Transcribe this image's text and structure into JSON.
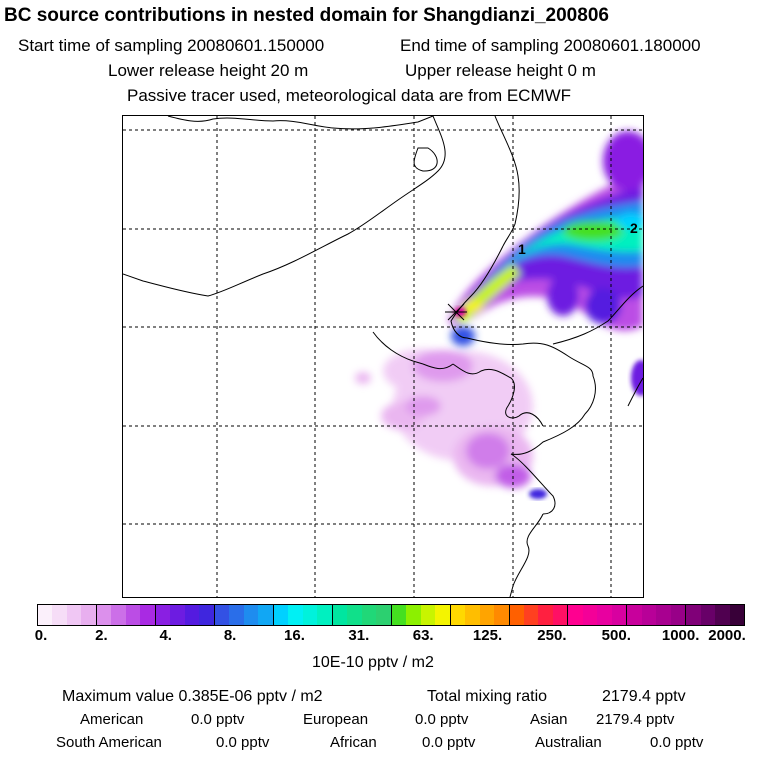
{
  "header": {
    "title": "BC  source contributions in nested domain for Shangdianzi_200806",
    "start_label": "Start time of sampling 20080601.150000",
    "end_label": "End time of sampling 20080601.180000",
    "lower_label": "Lower release height   20 m",
    "upper_label": "Upper release height    0 m",
    "tracer_label": "Passive tracer used, meteorological data are from ECMWF"
  },
  "map": {
    "markers": {
      "m1": "1",
      "m2": "2"
    }
  },
  "colorbar": {
    "tick_labels": [
      "0.",
      "2.",
      "4.",
      "8.",
      "16.",
      "31.",
      "63.",
      "125.",
      "250.",
      "500.",
      "1000.",
      "2000."
    ],
    "colors": [
      "#fbf0fb",
      "#f6ddf7",
      "#f0c7f4",
      "#e8afef",
      "#dc90ec",
      "#cc6fe8",
      "#bb4de5",
      "#a92ae3",
      "#8a1fe2",
      "#6d1ce1",
      "#541be0",
      "#3f26de",
      "#3351e4",
      "#2a6ee9",
      "#1e8cef",
      "#11a7f4",
      "#00d1ff",
      "#00f0f4",
      "#00f2dc",
      "#00f0c0",
      "#00e6a0",
      "#10e08a",
      "#20d878",
      "#2cd070",
      "#44e020",
      "#8cf000",
      "#c8f400",
      "#f4f400",
      "#ffd800",
      "#ffbe00",
      "#ffa400",
      "#ff8a00",
      "#ff6000",
      "#ff4020",
      "#ff2040",
      "#ff1064",
      "#ff0090",
      "#f40098",
      "#e800a0",
      "#d800a0",
      "#c8009c",
      "#b80098",
      "#a80090",
      "#980088",
      "#800078",
      "#680068",
      "#500050",
      "#380038"
    ],
    "unit": "10E-10 pptv / m2"
  },
  "footer": {
    "max_label": "Maximum value  0.385E-06 pptv / m2",
    "total_label": "Total mixing ratio",
    "total_value": "2179.4 pptv",
    "american_label": "American",
    "american_value": "0.0 pptv",
    "european_label": "European",
    "european_value": "0.0 pptv",
    "asian_label": "Asian",
    "asian_value": "2179.4 pptv",
    "south_american_label": "South American",
    "south_american_value": "0.0 pptv",
    "african_label": "African",
    "african_value": "0.0 pptv",
    "australian_label": "Australian",
    "australian_value": "0.0 pptv"
  }
}
